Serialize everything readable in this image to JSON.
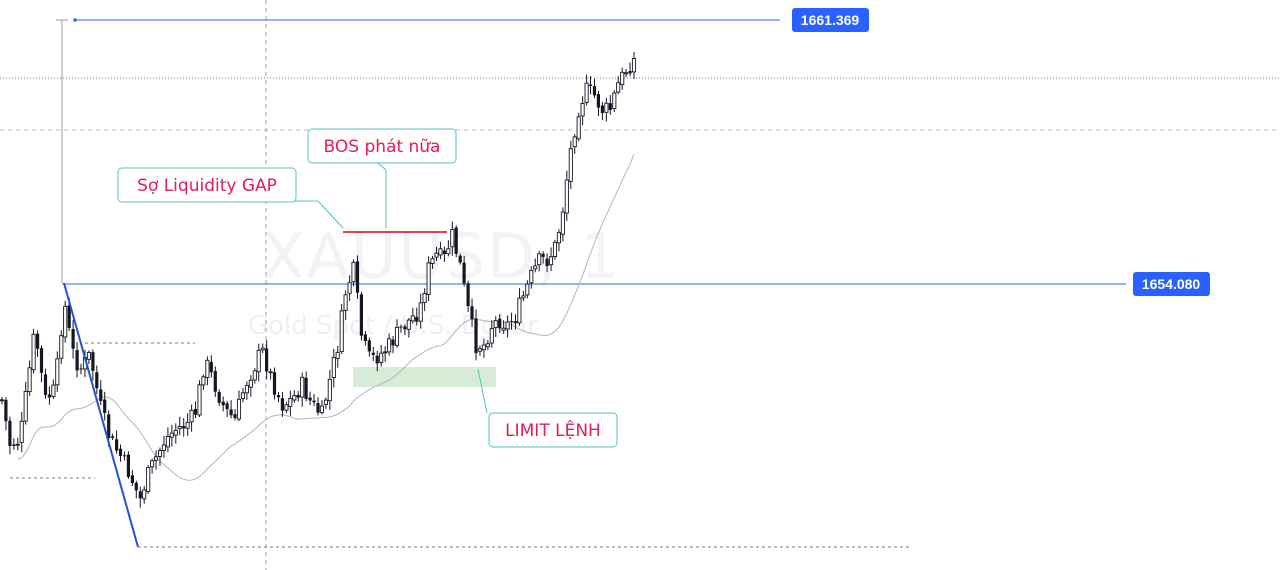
{
  "chart_data": {
    "type": "candlestick",
    "symbol_watermark": "XAUUSD, 1",
    "description_watermark": "Gold Spot / U.S. Dollar",
    "y_range": [
      1648.9,
      1661.9
    ],
    "price_levels": [
      {
        "name": "upper",
        "value": 1661.369,
        "label": "1661.369"
      },
      {
        "name": "lower",
        "value": 1654.08,
        "label": "1654.080"
      }
    ],
    "annotations": [
      {
        "name": "liquidity-gap",
        "text": "Sợ Liquidity GAP"
      },
      {
        "name": "bos",
        "text": "BOS phát nữa"
      },
      {
        "name": "limit-order",
        "text": "LIMIT LỆNH"
      }
    ],
    "bos_level": 1655.22,
    "demand_zone": {
      "top": 1652.05,
      "bottom": 1651.6
    },
    "swing_low": 1649.7,
    "swing_high": 1654.08,
    "colors": {
      "candle": "#131722",
      "ma": "#b2b5be",
      "level_line": "#2962ff",
      "swing_line": "#2750d8",
      "bos_line": "#f23645",
      "zone": "#c8e6c9",
      "annotation_text": "#e5195f",
      "annotation_border": "#54c1c1"
    }
  },
  "watermark": {
    "symbol": "XAUUSD, 1",
    "description": "Gold Spot / U.S. Dollar"
  },
  "labels": {
    "liquidity_gap": "Sợ Liquidity GAP",
    "bos": "BOS phát nữa",
    "limit": "LIMIT LỆNH",
    "price_upper": "1661.369",
    "price_lower": "1654.080"
  }
}
